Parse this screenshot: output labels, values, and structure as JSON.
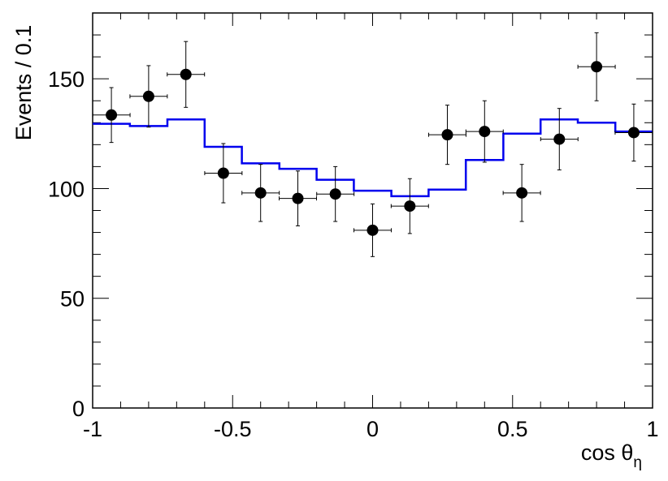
{
  "chart_data": {
    "type": "scatter",
    "title": "",
    "xlabel": "cos θ",
    "xlabel_subscript": "η",
    "ylabel": "Events / 0.1",
    "xlim": [
      -1,
      1
    ],
    "ylim": [
      0,
      180
    ],
    "x_ticks": [
      -1,
      -0.5,
      0,
      0.5,
      1
    ],
    "x_tick_labels": [
      "-1",
      "-0.5",
      "0",
      "0.5",
      "1"
    ],
    "y_ticks": [
      0,
      50,
      100,
      150
    ],
    "y_tick_labels": [
      "0",
      "50",
      "100",
      "150"
    ],
    "grid": false,
    "series": [
      {
        "kind": "points-with-errors",
        "color": "#000000",
        "x": [
          -0.933,
          -0.8,
          -0.667,
          -0.533,
          -0.4,
          -0.267,
          -0.133,
          0.0,
          0.133,
          0.267,
          0.4,
          0.533,
          0.667,
          0.8,
          0.933
        ],
        "y": [
          133.5,
          142,
          152,
          107,
          98,
          95.5,
          97.5,
          81,
          92,
          124.5,
          126,
          98,
          122.5,
          155.5,
          125.5
        ],
        "y_err": [
          12.5,
          14,
          15,
          13.5,
          13,
          12.5,
          12.5,
          12,
          12.5,
          13.5,
          14,
          13,
          14,
          15.5,
          13
        ],
        "x_err": 0.0667
      },
      {
        "kind": "step",
        "color": "#0000ee",
        "edges": [
          -1,
          -0.867,
          -0.733,
          -0.6,
          -0.467,
          -0.333,
          -0.2,
          -0.067,
          0.067,
          0.2,
          0.333,
          0.467,
          0.6,
          0.733,
          0.867,
          1
        ],
        "values": [
          129.5,
          128.5,
          131.5,
          119,
          111.5,
          109,
          104,
          99,
          96.5,
          99.5,
          113,
          125,
          131.5,
          130,
          126
        ]
      }
    ]
  }
}
